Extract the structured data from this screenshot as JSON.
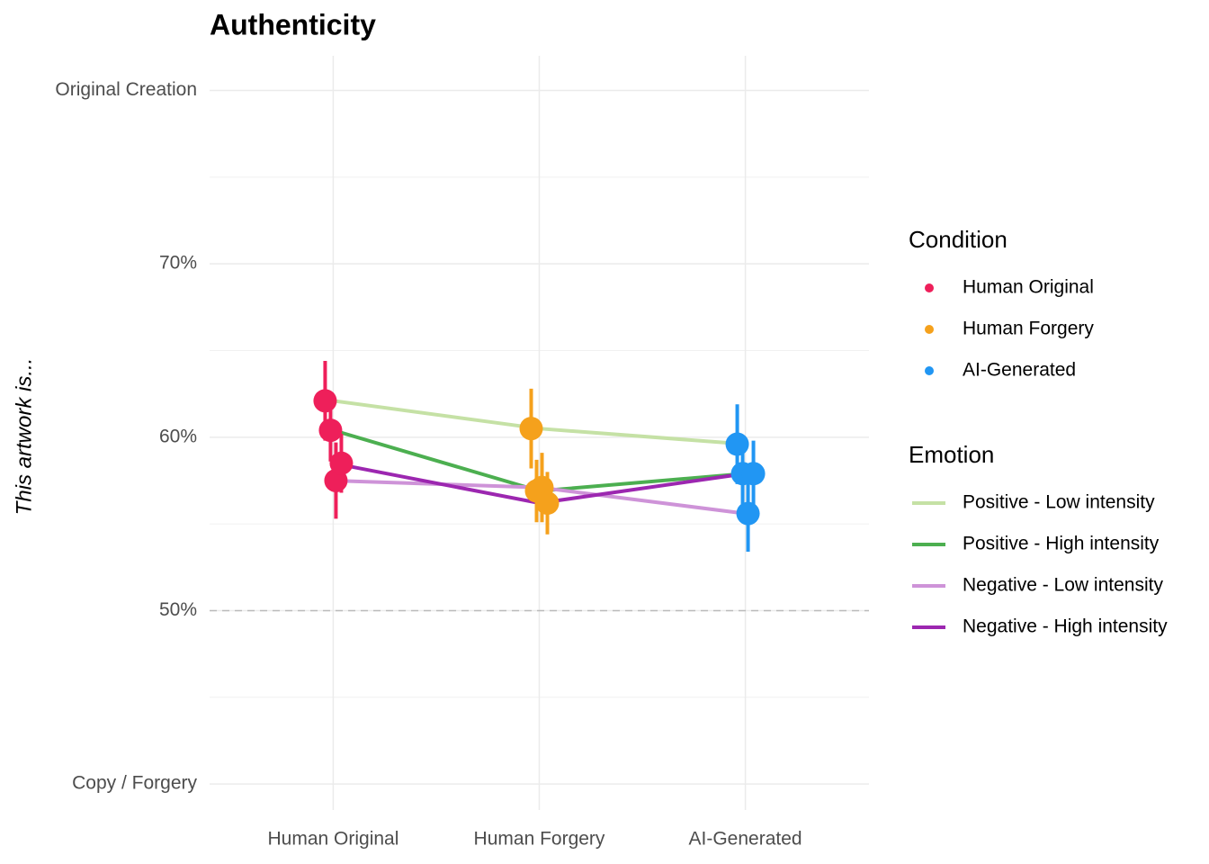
{
  "chart_data": {
    "type": "line",
    "title": "Authenticity",
    "y_label": "This artwork is...",
    "categories": [
      "Human Original",
      "Human Forgery",
      "AI-Generated"
    ],
    "series": [
      {
        "name": "Positive - Low intensity",
        "color": "#c5e1a5",
        "values": [
          62.1,
          60.5,
          59.6
        ],
        "errors": [
          2.3,
          2.3,
          2.3
        ]
      },
      {
        "name": "Positive - High intensity",
        "color": "#4caf50",
        "values": [
          60.4,
          56.9,
          57.9
        ],
        "errors": [
          1.8,
          1.8,
          1.9
        ]
      },
      {
        "name": "Negative - Low intensity",
        "color": "#ce93d8",
        "values": [
          57.5,
          57.1,
          55.6
        ],
        "errors": [
          2.2,
          2.0,
          2.2
        ]
      },
      {
        "name": "Negative - High intensity",
        "color": "#9c27b0",
        "values": [
          58.5,
          56.2,
          57.9
        ],
        "errors": [
          1.7,
          1.8,
          1.9
        ]
      }
    ],
    "conditions": [
      {
        "name": "Human Original",
        "color": "#ee1f5a"
      },
      {
        "name": "Human Forgery",
        "color": "#f5a11c"
      },
      {
        "name": "AI-Generated",
        "color": "#2196f3"
      }
    ],
    "condition_legend_title": "Condition",
    "emotion_legend_title": "Emotion",
    "hline": 50,
    "ylim": [
      38.5,
      82
    ],
    "yticks": [
      {
        "value": 40,
        "label": "Copy / Forgery"
      },
      {
        "value": 50,
        "label": "50%"
      },
      {
        "value": 60,
        "label": "60%"
      },
      {
        "value": 70,
        "label": "70%"
      },
      {
        "value": 80,
        "label": "Original Creation"
      }
    ],
    "grid": true
  }
}
